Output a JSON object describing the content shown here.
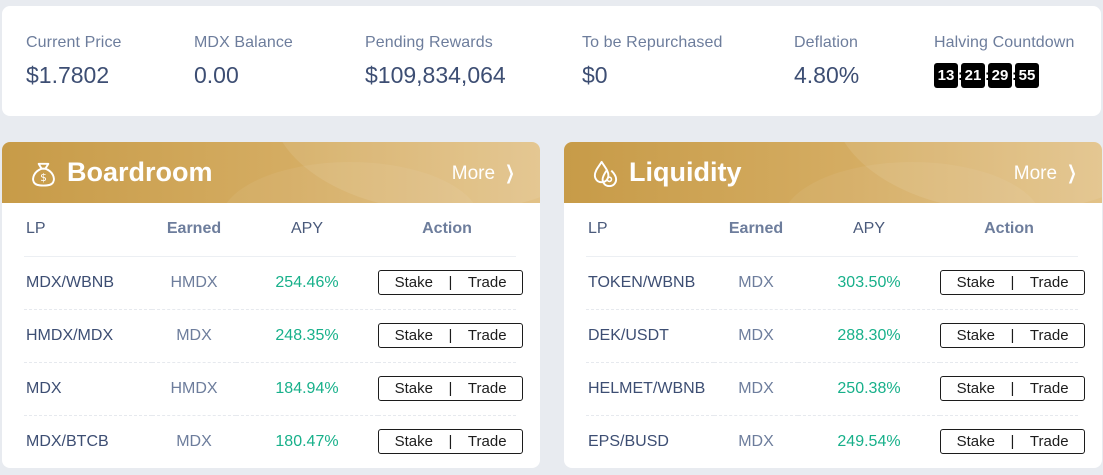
{
  "stats": [
    {
      "label": "Current Price",
      "value": "$1.7802"
    },
    {
      "label": "MDX Balance",
      "value": "0.00"
    },
    {
      "label": "Pending Rewards",
      "value": "$109,834,064"
    },
    {
      "label": "To be Repurchased",
      "value": "$0"
    },
    {
      "label": "Deflation",
      "value": "4.80%"
    }
  ],
  "countdown": {
    "label": "Halving Countdown",
    "parts": [
      "13",
      "21",
      "29",
      "55"
    ],
    "separator": ":"
  },
  "boardroom": {
    "title": "Boardroom",
    "icon": "money-bag-icon",
    "more_label": "More",
    "columns": [
      "LP",
      "Earned",
      "APY",
      "Action"
    ],
    "stake_label": "Stake",
    "divider": "|",
    "trade_label": "Trade",
    "rows": [
      {
        "pair": "MDX/WBNB",
        "earned": "HMDX",
        "apy": "254.46%"
      },
      {
        "pair": "HMDX/MDX",
        "earned": "MDX",
        "apy": "248.35%"
      },
      {
        "pair": "MDX",
        "earned": "HMDX",
        "apy": "184.94%"
      },
      {
        "pair": "MDX/BTCB",
        "earned": "MDX",
        "apy": "180.47%"
      }
    ]
  },
  "liquidity": {
    "title": "Liquidity",
    "icon": "liquidity-drop-icon",
    "more_label": "More",
    "columns": [
      "LP",
      "Earned",
      "APY",
      "Action"
    ],
    "stake_label": "Stake",
    "divider": "|",
    "trade_label": "Trade",
    "rows": [
      {
        "pair": "TOKEN/WBNB",
        "earned": "MDX",
        "apy": "303.50%"
      },
      {
        "pair": "DEK/USDT",
        "earned": "MDX",
        "apy": "288.30%"
      },
      {
        "pair": "HELMET/WBNB",
        "earned": "MDX",
        "apy": "250.38%"
      },
      {
        "pair": "EPS/BUSD",
        "earned": "MDX",
        "apy": "249.54%"
      }
    ]
  },
  "colors": {
    "accent_gold": "#c79b48",
    "apy_green": "#17b08a",
    "text_dark": "#3d4e73",
    "text_muted": "#6d7d9c"
  }
}
